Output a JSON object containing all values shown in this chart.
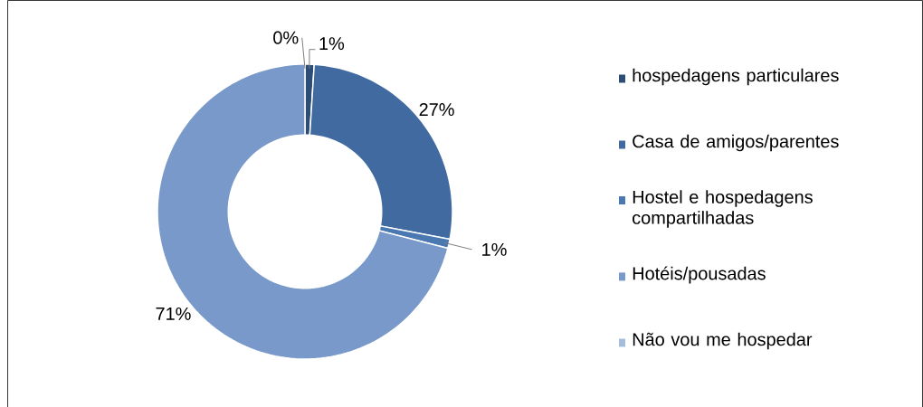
{
  "chart_data": {
    "type": "donut",
    "categories": [
      "hospedagens particulares",
      "Casa de amigos/parentes",
      "Hostel e hospedagens compartilhadas",
      "Hotéis/pousadas",
      "Não vou me hospedar"
    ],
    "values": [
      1,
      27,
      1,
      71,
      0
    ],
    "colors": [
      "#2c4d75",
      "#416ba0",
      "#4a78b0",
      "#7899c9",
      "#a6bcdd"
    ],
    "value_labels": [
      "1%",
      "27%",
      "1%",
      "71%",
      "0%"
    ],
    "legend": "right"
  }
}
